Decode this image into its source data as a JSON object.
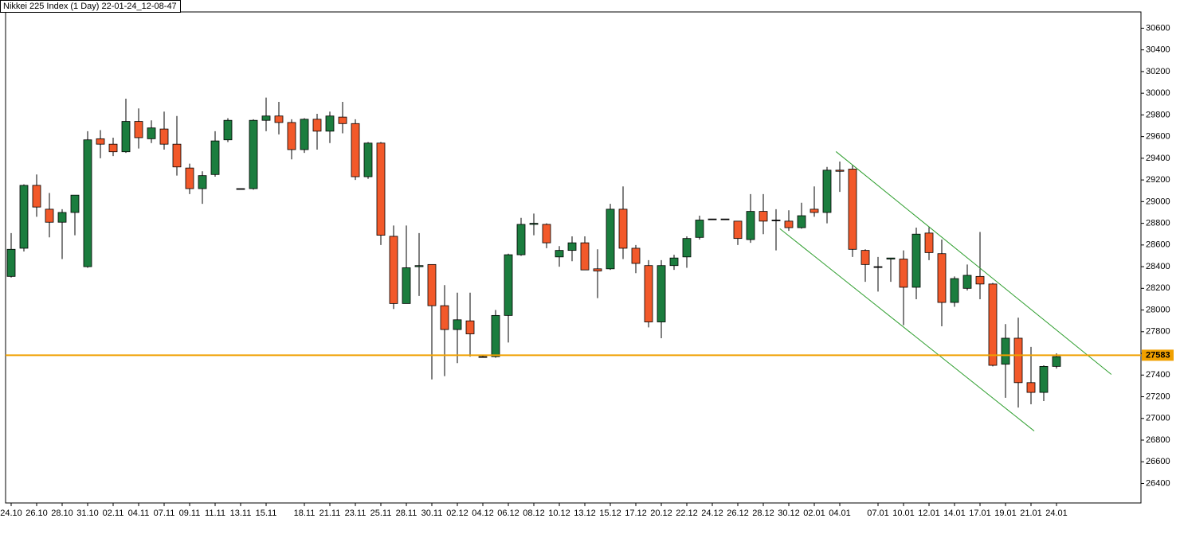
{
  "chart_data": {
    "type": "candlestick",
    "title": "Nikkei 225 Index (1 Day) 22-01-24_12-08-47",
    "categories": [
      "24.10",
      null,
      "26.10",
      null,
      "28.10",
      null,
      "31.10",
      null,
      "02.11",
      null,
      "04.11",
      null,
      "07.11",
      null,
      "09.11",
      null,
      "11.11",
      null,
      "13.11",
      null,
      "15.11",
      null,
      null,
      "18.11",
      null,
      "21.11",
      null,
      "23.11",
      null,
      "25.11",
      null,
      "28.11",
      null,
      "30.11",
      null,
      "02.12",
      null,
      "04.12",
      null,
      "06.12",
      null,
      "08.12",
      null,
      "10.12",
      null,
      "13.12",
      null,
      "15.12",
      null,
      "17.12",
      null,
      "20.12",
      null,
      "22.12",
      null,
      "24.12",
      null,
      "26.12",
      null,
      "28.12",
      null,
      "30.12",
      null,
      "02.01",
      null,
      "04.01",
      null,
      null,
      "07.01",
      null,
      "10.01",
      null,
      "12.01",
      null,
      "14.01",
      null,
      "17.01",
      null,
      "19.01",
      null,
      "21.01",
      null,
      "24.01"
    ],
    "open": [
      28310,
      28570,
      29150,
      28930,
      28810,
      28900,
      28400,
      29580,
      29530,
      29460,
      29740,
      29580,
      29670,
      29530,
      29310,
      29120,
      29250,
      29570,
      29120,
      29120,
      29750,
      29790,
      29730,
      29480,
      29760,
      29650,
      29780,
      29720,
      29230,
      29540,
      28680,
      28060,
      28400,
      28420,
      28040,
      27820,
      27900,
      27570,
      27570,
      27950,
      28510,
      28790,
      28790,
      28490,
      28550,
      28620,
      28380,
      28380,
      28930,
      28570,
      28410,
      27890,
      28410,
      28490,
      28670,
      28840,
      28840,
      28820,
      28650,
      28910,
      28830,
      28820,
      28760,
      28930,
      28900,
      29290,
      29300,
      28550,
      28400,
      28470,
      28470,
      28210,
      28710,
      28520,
      28070,
      28200,
      28310,
      28240,
      27500,
      27740,
      27330,
      27240,
      27480
    ],
    "high": [
      28710,
      29160,
      29250,
      29080,
      28930,
      29060,
      29650,
      29660,
      29590,
      29950,
      29860,
      29750,
      29830,
      29790,
      29350,
      29280,
      29650,
      29770,
      29120,
      29760,
      29960,
      29920,
      29760,
      29770,
      29810,
      29830,
      29920,
      29760,
      29550,
      29550,
      28780,
      28780,
      28710,
      28420,
      28230,
      28160,
      28160,
      27580,
      28000,
      28520,
      28850,
      28890,
      28800,
      28590,
      28680,
      28680,
      28560,
      28980,
      29140,
      28600,
      28460,
      28460,
      28510,
      28680,
      28870,
      28840,
      28840,
      28820,
      29070,
      29070,
      28930,
      28920,
      28990,
      29140,
      29320,
      29370,
      29340,
      28560,
      28490,
      28480,
      28550,
      28760,
      28770,
      28650,
      28310,
      28420,
      28720,
      28250,
      27870,
      27930,
      27660,
      27490,
      27600
    ],
    "low": [
      28300,
      28540,
      28860,
      28670,
      28470,
      28690,
      28390,
      29400,
      29420,
      29450,
      29490,
      29540,
      29480,
      29240,
      29070,
      28980,
      29230,
      29550,
      29120,
      29110,
      29650,
      29620,
      29390,
      29450,
      29480,
      29540,
      29630,
      29200,
      29210,
      28600,
      28010,
      28060,
      28130,
      27360,
      27390,
      27510,
      27570,
      27560,
      27560,
      27700,
      28500,
      28690,
      28570,
      28400,
      28450,
      28370,
      28110,
      28370,
      28470,
      28340,
      27840,
      27740,
      28370,
      28390,
      28650,
      28840,
      28840,
      28600,
      28620,
      28700,
      28550,
      28730,
      28750,
      28860,
      28800,
      29090,
      28490,
      28260,
      28170,
      28260,
      27860,
      28100,
      28460,
      27850,
      28030,
      28180,
      28100,
      27480,
      27190,
      27100,
      27130,
      27160,
      27460
    ],
    "close": [
      28560,
      29150,
      28950,
      28810,
      28900,
      29060,
      29570,
      29530,
      29460,
      29740,
      29590,
      29680,
      29530,
      29320,
      29120,
      29240,
      29560,
      29750,
      29120,
      29750,
      29790,
      29730,
      29480,
      29760,
      29650,
      29790,
      29720,
      29230,
      29540,
      28690,
      28060,
      28390,
      28410,
      28040,
      27820,
      27910,
      27780,
      27570,
      27950,
      28510,
      28790,
      28800,
      28620,
      28550,
      28620,
      28370,
      28360,
      28930,
      28570,
      28430,
      27890,
      28410,
      28480,
      28660,
      28830,
      28840,
      28840,
      28660,
      28910,
      28820,
      28830,
      28760,
      28870,
      28900,
      29290,
      29280,
      28560,
      28420,
      28400,
      28480,
      28210,
      28700,
      28530,
      28070,
      28290,
      28320,
      28240,
      27490,
      27740,
      27330,
      27240,
      27480,
      27570
    ],
    "up_color": "#1b7d3e",
    "down_color": "#f2592a",
    "ylim": [
      26220,
      30750
    ],
    "yticks": [
      26400,
      26600,
      26800,
      27000,
      27200,
      27400,
      27600,
      27800,
      28000,
      28200,
      28400,
      28600,
      28800,
      29000,
      29200,
      29400,
      29600,
      29800,
      30000,
      30200,
      30400,
      30600
    ],
    "hline": {
      "value": 27583,
      "color": "#f0a000"
    },
    "trendlines": [
      {
        "x": [
          64.7,
          86.3
        ],
        "y": [
          29462,
          27406
        ],
        "color": "#2e9e2e"
      },
      {
        "x": [
          60.3,
          80.25
        ],
        "y": [
          28750,
          26884
        ],
        "color": "#2e9e2e"
      }
    ]
  }
}
